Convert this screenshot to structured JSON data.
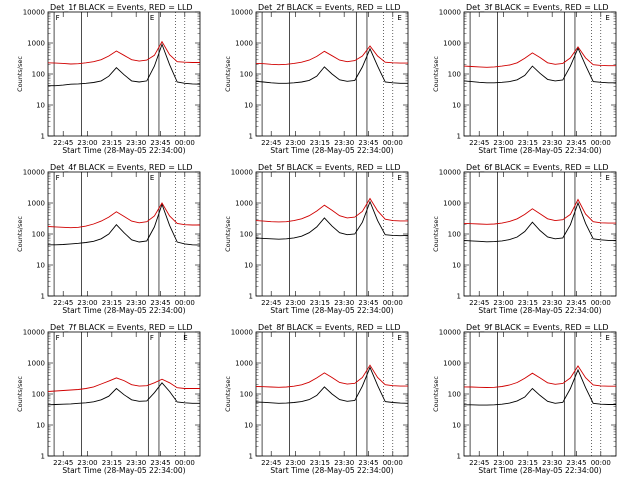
{
  "chart_data": [
    {
      "type": "line",
      "title": "Det_1f BLACK = Events, RED = LLD",
      "xlabel": "Start Time (28-May-05 22:34:00)",
      "ylabel": "Counts/sec",
      "yscale": "log",
      "ylim": [
        1,
        10000
      ],
      "yticks": [
        "1",
        "10",
        "100",
        "1000",
        "10000"
      ],
      "xticks": [
        "22:45",
        "23:00",
        "23:15",
        "23:30",
        "23:45",
        "00:00"
      ],
      "markers": [
        "F",
        "E"
      ],
      "series": [
        {
          "name": "BLACK = Events",
          "color": "#000000",
          "x": [
            0,
            5,
            10,
            15,
            20,
            25,
            30,
            35,
            40,
            45,
            50,
            55,
            60,
            65,
            70,
            75,
            80,
            85,
            90,
            95,
            100
          ],
          "values": [
            42,
            42,
            44,
            47,
            48,
            50,
            53,
            60,
            85,
            160,
            95,
            60,
            55,
            60,
            180,
            900,
            200,
            55,
            50,
            48,
            47
          ]
        },
        {
          "name": "RED = LLD",
          "color": "#d00000",
          "x": [
            0,
            5,
            10,
            15,
            20,
            25,
            30,
            35,
            40,
            45,
            50,
            55,
            60,
            65,
            70,
            75,
            80,
            85,
            90,
            95,
            100
          ],
          "values": [
            230,
            225,
            220,
            210,
            215,
            230,
            250,
            290,
            380,
            550,
            400,
            290,
            260,
            280,
            400,
            1100,
            420,
            250,
            240,
            235,
            235
          ]
        }
      ]
    },
    {
      "type": "line",
      "title": "Det_2f BLACK = Events, RED = LLD",
      "xlabel": "Start Time (28-May-05 22:34:00)",
      "ylabel": "Counts/sec",
      "yscale": "log",
      "ylim": [
        1,
        10000
      ],
      "yticks": [
        "1",
        "10",
        "100",
        "1000",
        "10000"
      ],
      "xticks": [
        "22:45",
        "23:00",
        "23:15",
        "23:30",
        "23:45",
        "00:00"
      ],
      "markers": [
        "E"
      ],
      "series": [
        {
          "name": "BLACK = Events",
          "color": "#000000",
          "x": [
            0,
            5,
            10,
            15,
            20,
            25,
            30,
            35,
            40,
            45,
            50,
            55,
            60,
            65,
            70,
            75,
            80,
            85,
            90,
            95,
            100
          ],
          "values": [
            58,
            55,
            52,
            50,
            50,
            52,
            55,
            62,
            85,
            170,
            100,
            65,
            58,
            62,
            170,
            650,
            180,
            55,
            52,
            50,
            50
          ]
        },
        {
          "name": "RED = LLD",
          "color": "#d00000",
          "x": [
            0,
            5,
            10,
            15,
            20,
            25,
            30,
            35,
            40,
            45,
            50,
            55,
            60,
            65,
            70,
            75,
            80,
            85,
            90,
            95,
            100
          ],
          "values": [
            220,
            215,
            205,
            200,
            205,
            220,
            240,
            280,
            370,
            540,
            390,
            280,
            250,
            270,
            380,
            800,
            380,
            240,
            230,
            225,
            225
          ]
        }
      ]
    },
    {
      "type": "line",
      "title": "Det_3f BLACK = Events, RED = LLD",
      "xlabel": "Start Time (28-May-05 22:34:00)",
      "ylabel": "Counts/sec",
      "yscale": "log",
      "ylim": [
        1,
        10000
      ],
      "yticks": [
        "1",
        "10",
        "100",
        "1000",
        "10000"
      ],
      "xticks": [
        "22:45",
        "23:00",
        "23:15",
        "23:30",
        "23:45",
        "00:00"
      ],
      "markers": [
        "E"
      ],
      "series": [
        {
          "name": "BLACK = Events",
          "color": "#000000",
          "x": [
            0,
            5,
            10,
            15,
            20,
            25,
            30,
            35,
            40,
            45,
            50,
            55,
            60,
            65,
            70,
            75,
            80,
            85,
            90,
            95,
            100
          ],
          "values": [
            60,
            57,
            54,
            52,
            52,
            54,
            57,
            65,
            90,
            180,
            105,
            67,
            60,
            64,
            180,
            680,
            190,
            57,
            54,
            52,
            52
          ]
        },
        {
          "name": "RED = LLD",
          "color": "#d00000",
          "x": [
            0,
            5,
            10,
            15,
            20,
            25,
            30,
            35,
            40,
            45,
            50,
            55,
            60,
            65,
            70,
            75,
            80,
            85,
            90,
            95,
            100
          ],
          "values": [
            180,
            175,
            170,
            165,
            170,
            180,
            195,
            230,
            320,
            480,
            340,
            230,
            205,
            220,
            330,
            750,
            330,
            200,
            190,
            185,
            185
          ]
        }
      ]
    },
    {
      "type": "line",
      "title": "Det_4f BLACK = Events, RED = LLD",
      "xlabel": "Start Time (28-May-05 22:34:00)",
      "ylabel": "Counts/sec",
      "yscale": "log",
      "ylim": [
        1,
        10000
      ],
      "yticks": [
        "1",
        "10",
        "100",
        "1000",
        "10000"
      ],
      "xticks": [
        "22:45",
        "23:00",
        "23:15",
        "23:30",
        "23:45",
        "00:00"
      ],
      "markers": [
        "F",
        "E"
      ],
      "series": [
        {
          "name": "BLACK = Events",
          "color": "#000000",
          "x": [
            0,
            5,
            10,
            15,
            20,
            25,
            30,
            35,
            40,
            45,
            50,
            55,
            60,
            65,
            70,
            75,
            80,
            85,
            90,
            95,
            100
          ],
          "values": [
            45,
            45,
            46,
            48,
            50,
            53,
            58,
            70,
            100,
            200,
            110,
            65,
            55,
            60,
            170,
            900,
            190,
            55,
            48,
            45,
            44
          ]
        },
        {
          "name": "RED = LLD",
          "color": "#d00000",
          "x": [
            0,
            5,
            10,
            15,
            20,
            25,
            30,
            35,
            40,
            45,
            50,
            55,
            60,
            65,
            70,
            75,
            80,
            85,
            90,
            95,
            100
          ],
          "values": [
            175,
            170,
            165,
            160,
            165,
            180,
            210,
            260,
            350,
            520,
            370,
            260,
            230,
            250,
            380,
            1000,
            380,
            220,
            200,
            195,
            195
          ]
        }
      ]
    },
    {
      "type": "line",
      "title": "Det_5f BLACK = Events, RED = LLD",
      "xlabel": "Start Time (28-May-05 22:34:00)",
      "ylabel": "Counts/sec",
      "yscale": "log",
      "ylim": [
        1,
        10000
      ],
      "yticks": [
        "1",
        "10",
        "100",
        "1000",
        "10000"
      ],
      "xticks": [
        "22:45",
        "23:00",
        "23:15",
        "23:30",
        "23:45",
        "00:00"
      ],
      "markers": [
        "E"
      ],
      "series": [
        {
          "name": "BLACK = Events",
          "color": "#000000",
          "x": [
            0,
            5,
            10,
            15,
            20,
            25,
            30,
            35,
            40,
            45,
            50,
            55,
            60,
            65,
            70,
            75,
            80,
            85,
            90,
            95,
            100
          ],
          "values": [
            75,
            72,
            70,
            68,
            70,
            75,
            85,
            110,
            170,
            330,
            180,
            110,
            95,
            100,
            240,
            1100,
            270,
            95,
            90,
            88,
            90
          ]
        },
        {
          "name": "RED = LLD",
          "color": "#d00000",
          "x": [
            0,
            5,
            10,
            15,
            20,
            25,
            30,
            35,
            40,
            45,
            50,
            55,
            60,
            65,
            70,
            75,
            80,
            85,
            90,
            95,
            100
          ],
          "values": [
            270,
            260,
            250,
            245,
            250,
            270,
            310,
            390,
            550,
            850,
            580,
            390,
            330,
            350,
            540,
            1400,
            560,
            300,
            270,
            265,
            265
          ]
        }
      ]
    },
    {
      "type": "line",
      "title": "Det_6f BLACK = Events, RED = LLD",
      "xlabel": "Start Time (28-May-05 22:34:00)",
      "ylabel": "Counts/sec",
      "yscale": "log",
      "ylim": [
        1,
        10000
      ],
      "yticks": [
        "1",
        "10",
        "100",
        "1000",
        "10000"
      ],
      "xticks": [
        "22:45",
        "23:00",
        "23:15",
        "23:30",
        "23:45",
        "00:00"
      ],
      "markers": [
        "E"
      ],
      "series": [
        {
          "name": "BLACK = Events",
          "color": "#000000",
          "x": [
            0,
            5,
            10,
            15,
            20,
            25,
            30,
            35,
            40,
            45,
            50,
            55,
            60,
            65,
            70,
            75,
            80,
            85,
            90,
            95,
            100
          ],
          "values": [
            62,
            60,
            58,
            56,
            57,
            60,
            66,
            80,
            120,
            240,
            130,
            80,
            70,
            75,
            200,
            1000,
            220,
            70,
            65,
            62,
            62
          ]
        },
        {
          "name": "RED = LLD",
          "color": "#d00000",
          "x": [
            0,
            5,
            10,
            15,
            20,
            25,
            30,
            35,
            40,
            45,
            50,
            55,
            60,
            65,
            70,
            75,
            80,
            85,
            90,
            95,
            100
          ],
          "values": [
            220,
            215,
            210,
            205,
            210,
            225,
            255,
            310,
            430,
            650,
            450,
            310,
            270,
            290,
            430,
            1300,
            440,
            250,
            230,
            225,
            225
          ]
        }
      ]
    },
    {
      "type": "line",
      "title": "Det_7f BLACK = Events, RED = LLD",
      "xlabel": "Start Time (28-May-05 22:34:00)",
      "ylabel": "Counts/sec",
      "yscale": "log",
      "ylim": [
        1,
        10000
      ],
      "yticks": [
        "1",
        "10",
        "100",
        "1000",
        "10000"
      ],
      "xticks": [
        "22:45",
        "23:00",
        "23:15",
        "23:30",
        "23:45",
        "00:00"
      ],
      "markers": [
        "F",
        "F",
        "E"
      ],
      "series": [
        {
          "name": "BLACK = Events",
          "color": "#000000",
          "x": [
            0,
            5,
            10,
            15,
            20,
            25,
            30,
            35,
            40,
            45,
            50,
            55,
            60,
            65,
            70,
            75,
            80,
            85,
            90,
            95,
            100
          ],
          "values": [
            45,
            46,
            47,
            48,
            50,
            52,
            56,
            65,
            85,
            150,
            95,
            65,
            58,
            60,
            110,
            230,
            120,
            55,
            52,
            50,
            50
          ]
        },
        {
          "name": "RED = LLD",
          "color": "#d00000",
          "x": [
            0,
            5,
            10,
            15,
            20,
            25,
            30,
            35,
            40,
            45,
            50,
            55,
            60,
            65,
            70,
            75,
            80,
            85,
            90,
            95,
            100
          ],
          "values": [
            120,
            125,
            130,
            135,
            140,
            150,
            170,
            210,
            260,
            330,
            270,
            200,
            180,
            185,
            230,
            300,
            230,
            160,
            150,
            150,
            150
          ]
        }
      ]
    },
    {
      "type": "line",
      "title": "Det_8f BLACK = Events, RED = LLD",
      "xlabel": "Start Time (28-May-05 22:34:00)",
      "ylabel": "Counts/sec",
      "yscale": "log",
      "ylim": [
        1,
        10000
      ],
      "yticks": [
        "1",
        "10",
        "100",
        "1000",
        "10000"
      ],
      "xticks": [
        "22:45",
        "23:00",
        "23:15",
        "23:30",
        "23:45",
        "00:00"
      ],
      "markers": [
        "E"
      ],
      "series": [
        {
          "name": "BLACK = Events",
          "color": "#000000",
          "x": [
            0,
            5,
            10,
            15,
            20,
            25,
            30,
            35,
            40,
            45,
            50,
            55,
            60,
            65,
            70,
            75,
            80,
            85,
            90,
            95,
            100
          ],
          "values": [
            55,
            54,
            52,
            50,
            51,
            53,
            57,
            66,
            90,
            170,
            100,
            66,
            58,
            62,
            180,
            720,
            190,
            57,
            53,
            51,
            50
          ]
        },
        {
          "name": "RED = LLD",
          "color": "#d00000",
          "x": [
            0,
            5,
            10,
            15,
            20,
            25,
            30,
            35,
            40,
            45,
            50,
            55,
            60,
            65,
            70,
            75,
            80,
            85,
            90,
            95,
            100
          ],
          "values": [
            175,
            172,
            168,
            165,
            168,
            178,
            198,
            240,
            330,
            480,
            340,
            235,
            208,
            222,
            340,
            850,
            340,
            200,
            185,
            180,
            180
          ]
        }
      ]
    },
    {
      "type": "line",
      "title": "Det_9f BLACK = Events, RED = LLD",
      "xlabel": "Start Time (28-May-05 22:34:00)",
      "ylabel": "Counts/sec",
      "yscale": "log",
      "ylim": [
        1,
        10000
      ],
      "yticks": [
        "1",
        "10",
        "100",
        "1000",
        "10000"
      ],
      "xticks": [
        "22:45",
        "23:00",
        "23:15",
        "23:30",
        "23:45",
        "00:00"
      ],
      "markers": [
        "E"
      ],
      "series": [
        {
          "name": "BLACK = Events",
          "color": "#000000",
          "x": [
            0,
            5,
            10,
            15,
            20,
            25,
            30,
            35,
            40,
            45,
            50,
            55,
            60,
            65,
            70,
            75,
            80,
            85,
            90,
            95,
            100
          ],
          "values": [
            45,
            45,
            44,
            44,
            45,
            47,
            51,
            60,
            80,
            150,
            90,
            58,
            50,
            54,
            150,
            600,
            160,
            50,
            47,
            46,
            46
          ]
        },
        {
          "name": "RED = LLD",
          "color": "#d00000",
          "x": [
            0,
            5,
            10,
            15,
            20,
            25,
            30,
            35,
            40,
            45,
            50,
            55,
            60,
            65,
            70,
            75,
            80,
            85,
            90,
            95,
            100
          ],
          "values": [
            170,
            168,
            165,
            162,
            165,
            175,
            195,
            235,
            320,
            470,
            330,
            230,
            205,
            218,
            330,
            800,
            335,
            195,
            182,
            178,
            178
          ]
        }
      ]
    }
  ]
}
